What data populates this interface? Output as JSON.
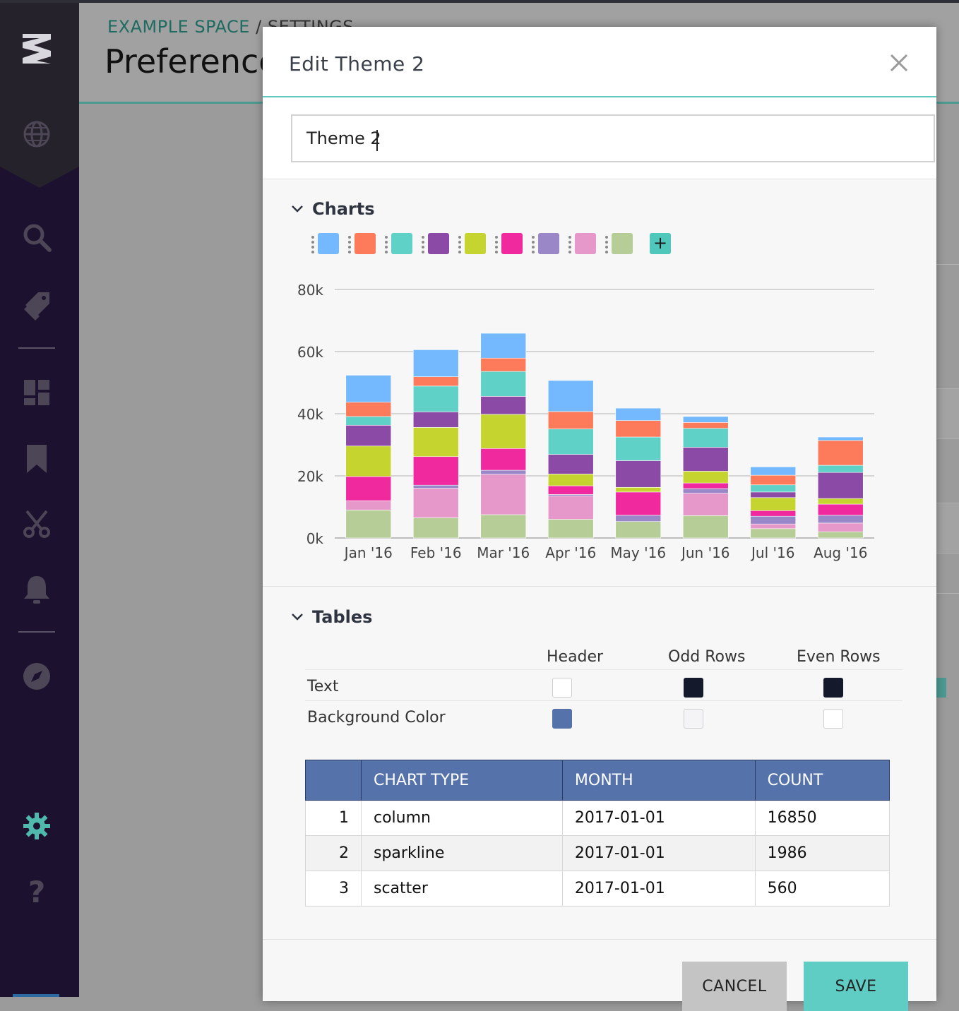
{
  "breadcrumb": {
    "space": "EXAMPLE SPACE",
    "separator": "/",
    "section": "SETTINGS"
  },
  "page_title": "Preferences",
  "modal": {
    "title": "Edit Theme 2",
    "theme_name_value": "Theme 2",
    "charts_section_label": "Charts",
    "tables_section_label": "Tables",
    "palette": [
      "#74b9fd",
      "#fd7a5b",
      "#5fd1c6",
      "#8a4aa6",
      "#c5d42e",
      "#f02a9e",
      "#9a87c8",
      "#e598c9",
      "#b6cd98"
    ],
    "add_color_label": "+",
    "table_settings": {
      "columns": [
        "Header",
        "Odd Rows",
        "Even Rows"
      ],
      "rows": [
        {
          "label": "Text",
          "colors": [
            "#ffffff",
            "#141a2b",
            "#141a2b"
          ]
        },
        {
          "label": "Background Color",
          "colors": [
            "#5672aa",
            "#f4f4f6",
            "#ffffff"
          ]
        }
      ]
    },
    "preview_table": {
      "headers": [
        "",
        "CHART TYPE",
        "MONTH",
        "COUNT"
      ],
      "rows": [
        [
          "1",
          "column",
          "2017-01-01",
          "16850"
        ],
        [
          "2",
          "sparkline",
          "2017-01-01",
          "1986"
        ],
        [
          "3",
          "scatter",
          "2017-01-01",
          "560"
        ]
      ]
    },
    "cancel_label": "CANCEL",
    "save_label": "SAVE"
  },
  "chart_data": {
    "type": "bar",
    "stacked": true,
    "categories": [
      "Jan '16",
      "Feb '16",
      "Mar '16",
      "Apr '16",
      "May '16",
      "Jun '16",
      "Jul '16",
      "Aug '16"
    ],
    "ylim": [
      0,
      80000
    ],
    "yticks": [
      "0k",
      "20k",
      "40k",
      "60k",
      "80k"
    ],
    "grid": true,
    "series": [
      {
        "color": "#b6cd98",
        "values": [
          9000,
          6500,
          7500,
          6000,
          5300,
          7200,
          3000,
          2000
        ]
      },
      {
        "color": "#e598c9",
        "values": [
          3000,
          9500,
          13000,
          7500,
          0,
          7200,
          1500,
          2800
        ]
      },
      {
        "color": "#9a87c8",
        "values": [
          0,
          1000,
          1300,
          500,
          2000,
          1500,
          2500,
          2500
        ]
      },
      {
        "color": "#f02a9e",
        "values": [
          7800,
          9200,
          7000,
          2800,
          7500,
          1800,
          1800,
          3600
        ]
      },
      {
        "color": "#c5d42e",
        "values": [
          9800,
          9400,
          11000,
          3800,
          1500,
          3800,
          4200,
          1800
        ]
      },
      {
        "color": "#8a4aa6",
        "values": [
          6700,
          5000,
          5800,
          6300,
          8600,
          7700,
          1800,
          8400
        ]
      },
      {
        "color": "#5fd1c6",
        "values": [
          2800,
          8300,
          8000,
          8200,
          7600,
          6100,
          2300,
          2300
        ]
      },
      {
        "color": "#fd7a5b",
        "values": [
          4600,
          3000,
          4300,
          5600,
          5300,
          1900,
          3100,
          8000
        ]
      },
      {
        "color": "#74b9fd",
        "values": [
          8700,
          8700,
          8000,
          10000,
          4000,
          1900,
          2700,
          1100
        ]
      }
    ]
  }
}
